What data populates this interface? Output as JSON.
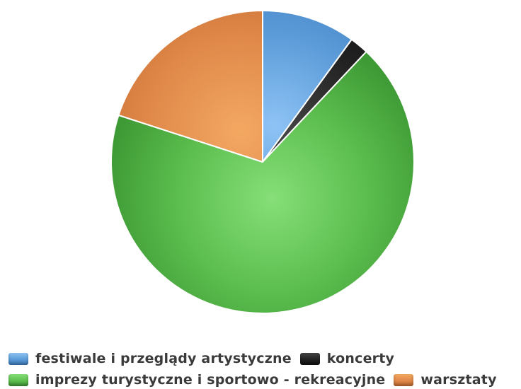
{
  "chart_data": {
    "type": "pie",
    "title": "",
    "start": "top",
    "direction": "clockwise",
    "slices": [
      {
        "label": "festiwale i przeglądy artystyczne",
        "value": 10,
        "color": "#5b9bd8",
        "light": "#8ec3f5",
        "dark": "#3f7fc0"
      },
      {
        "label": "koncerty",
        "value": 2,
        "color": "#222222",
        "light": "#444444",
        "dark": "#111111"
      },
      {
        "label": "imprezy turystyczne i sportowo - rekreacyjne",
        "value": 68,
        "color": "#5dbf4f",
        "light": "#86df78",
        "dark": "#3e9a35"
      },
      {
        "label": "warsztaty",
        "value": 20,
        "color": "#e0894a",
        "light": "#f3a862",
        "dark": "#c86e32"
      }
    ],
    "legend": {
      "position": "bottom",
      "rows": [
        [
          0,
          1
        ],
        [
          2,
          3
        ]
      ]
    }
  }
}
